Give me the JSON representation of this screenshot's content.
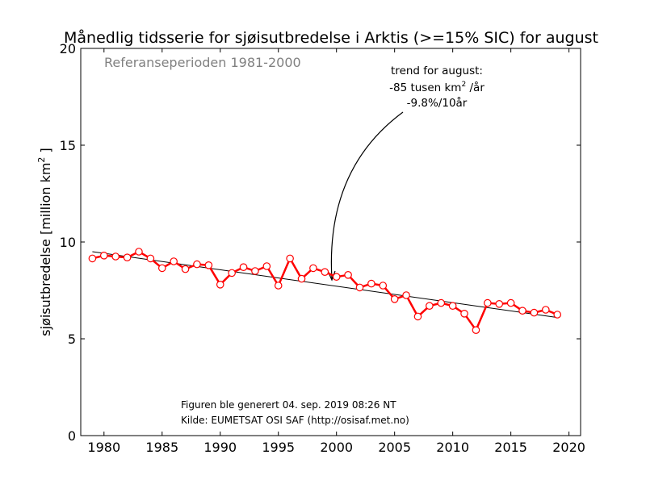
{
  "chart_data": {
    "type": "line",
    "title": "Månedlig tidsserie for sjøisutbredelse i Arktis (>=15% SIC) for august",
    "ylabel": {
      "main": "sjøisutbredelse [million km",
      "sup": "2",
      "end": " ]"
    },
    "xlim": [
      1978,
      2021
    ],
    "ylim": [
      0,
      20
    ],
    "xticks": [
      1980,
      1985,
      1990,
      1995,
      2000,
      2005,
      2010,
      2015,
      2020
    ],
    "yticks": [
      0,
      5,
      10,
      15,
      20
    ],
    "reference_text": "Referanseperioden 1981-2000",
    "trend_annotation": {
      "line1": "trend for august:",
      "line2_pre": "-85 tusen km",
      "line2_sup": "2",
      "line2_post": " /år",
      "line3": "-9.8%/10år"
    },
    "footer": {
      "generated": "Figuren ble generert 04. sep. 2019 08:26 NT",
      "source": "Kilde: EUMETSAT OSI SAF (http://osisaf.met.no)"
    },
    "colors": {
      "series": "#ff0000",
      "trend": "#000000",
      "marker_fill": "#ffffff"
    },
    "series": [
      {
        "x": [
          1979,
          1980,
          1981,
          1982,
          1983,
          1984,
          1985,
          1986,
          1987,
          1988,
          1989,
          1990,
          1991,
          1992,
          1993,
          1994,
          1995,
          1996,
          1997,
          1998,
          1999,
          2000,
          2001,
          2002,
          2003,
          2004,
          2005,
          2006,
          2007,
          2008,
          2009,
          2010,
          2011,
          2012,
          2013,
          2014,
          2015,
          2016,
          2017,
          2018,
          2019
        ],
        "values": [
          9.15,
          9.3,
          9.25,
          9.2,
          9.5,
          9.15,
          8.65,
          9.0,
          8.6,
          8.85,
          8.8,
          7.8,
          8.4,
          8.7,
          8.5,
          8.75,
          7.75,
          9.15,
          8.1,
          8.65,
          8.45,
          8.2,
          8.3,
          7.65,
          7.85,
          7.75,
          7.05,
          7.25,
          6.15,
          6.7,
          6.85,
          6.7,
          6.3,
          5.45,
          6.85,
          6.8,
          6.85,
          6.45,
          6.35,
          6.5,
          6.25
        ]
      }
    ],
    "trend_line": {
      "x": [
        1979,
        2019
      ],
      "y": [
        9.5,
        6.1
      ]
    }
  }
}
